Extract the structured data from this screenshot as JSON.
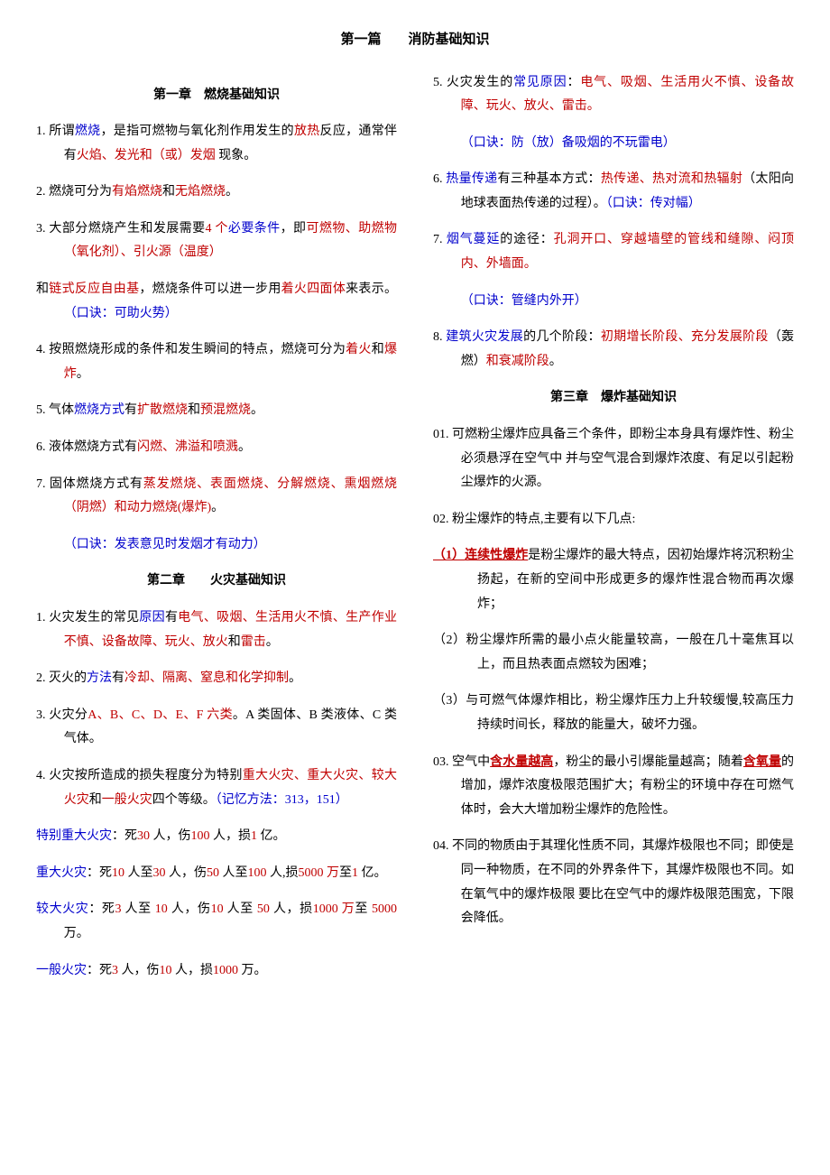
{
  "colors": {
    "black": "#000000",
    "red": "#c00000",
    "blue": "#0000cc",
    "background": "#ffffff"
  },
  "mainTitle": {
    "part1": "第一篇",
    "spacer": "　　",
    "part2": "消防基础知识"
  },
  "leftCol": {
    "ch1": {
      "title": "第一章　燃烧基础知识",
      "i1": {
        "a": "1. 所谓",
        "b": "燃烧",
        "c": "，是指可燃物与氧化剂作用发生的",
        "d": "放热",
        "e": "反应，通常伴有",
        "f": "火焰、发光和（或）发烟",
        "g": " 现象。"
      },
      "i2": {
        "a": "2. 燃烧可分为",
        "b": "有焰燃烧",
        "c": "和",
        "d": "无焰燃烧",
        "e": "。"
      },
      "i3": {
        "a": "3. 大部分燃烧产生和发展需要",
        "b": "4 个",
        "c": "必要条件",
        "d": "，即",
        "e": "可燃物、助燃物（氧化剂）、引火源（温度）"
      },
      "i3b": {
        "a": "和",
        "b": "链式反应自由基",
        "c": "，燃烧条件可以进一步用",
        "d": "着火四面体",
        "e": "来表示。",
        "f": "（口诀：可助火势）"
      },
      "i4": {
        "a": "4. 按照燃烧形成的条件和发生瞬间的特点，燃烧可分为",
        "b": "着火",
        "c": "和",
        "d": "爆炸",
        "e": "。"
      },
      "i5": {
        "a": "5. 气体",
        "b": "燃烧方式",
        "c": "有",
        "d": "扩散燃烧",
        "e": "和",
        "f": "预混燃烧",
        "g": "。"
      },
      "i6": {
        "a": "6. 液体燃烧方式有",
        "b": "闪燃、沸溢和喷溅",
        "c": "。"
      },
      "i7": {
        "a": "7. 固体燃烧方式有",
        "b": "蒸发燃烧、表面燃烧、分解燃烧、熏烟燃烧（阴燃）和动力燃烧(爆炸)",
        "c": "。"
      },
      "i7b": "（口诀：发表意见时发烟才有动力）"
    },
    "ch2": {
      "title": "第二章　　火灾基础知识",
      "i1": {
        "a": "1. 火灾发生的常见",
        "b": "原因",
        "c": "有",
        "d": "电气、吸烟、生活用火不慎、生产作业不慎、设备故障、玩火、放火",
        "e": "和",
        "f": "雷击",
        "g": "。"
      },
      "i2": {
        "a": "2. 灭火的",
        "b": "方法",
        "c": "有",
        "d": "冷却、隔离、窒息和化学抑制",
        "e": "。"
      },
      "i3": {
        "a": "3. 火灾分",
        "b": "A、B、C、D、E、F 六类",
        "c": "。A 类固体、B 类液体、C 类气体。"
      },
      "i4": {
        "a": "4. 火灾按所造成的损失程度分为特别",
        "b": "重大火灾、重大火灾、较大火灾",
        "c": "和",
        "d": "一般火灾",
        "e": "四个等级。",
        "f": "（记忆方法：313，151）"
      },
      "i5": {
        "a": "特别重大火灾",
        "b": "：死",
        "c": "30",
        "d": " 人，伤",
        "e": "100",
        "f": " 人，损",
        "g": "1",
        "h": " 亿。"
      },
      "i6": {
        "a": "重大火灾",
        "b": "：死",
        "c": "10",
        "d": " 人至",
        "e": "30",
        "f": " 人，伤",
        "g": "50",
        "h": " 人至",
        "i": "100",
        "j": " 人,损",
        "k": "5000 万",
        "l": "至",
        "m": "1",
        "n": " 亿。"
      },
      "i7": {
        "a": "较大火灾",
        "b": "：死",
        "c": "3",
        "d": " 人至",
        "e": " 10",
        "f": " 人，伤",
        "g": "10",
        "h": " 人至",
        "i": " 50",
        "j": " 人，损",
        "k": "1000 万",
        "l": "至",
        "m": " 5000 ",
        "n": "万。"
      },
      "i8": {
        "a": "一般火灾",
        "b": "：死",
        "c": "3",
        "d": " 人，伤",
        "e": "10",
        "f": " 人，损",
        "g": "1000 ",
        "h": "万。"
      }
    }
  },
  "rightCol": {
    "ch2b": {
      "i5": {
        "a": "5. 火灾发生的",
        "b": "常见原因",
        "c": "：",
        "d": "电气、吸烟、生活用火不慎、设备故障、玩火、放火、雷击。"
      },
      "i5b": "（口诀：防（放）备吸烟的不玩雷电）",
      "i6": {
        "a": "6. ",
        "b": "热量传递",
        "c": "有三种基本方式：",
        "d": "热传递、热对流和热辐射",
        "e": "（太阳向地球表面热传递的过程）。",
        "f": "（口诀：传对幅）"
      },
      "i7": {
        "a": "7. ",
        "b": "烟气蔓延",
        "c": "的途径：",
        "d": "孔洞开口、穿越墙壁的管线和缝隙、闷顶内、外墙面。"
      },
      "i7b": "（口诀：管缝内外开）",
      "i8": {
        "a": "8. ",
        "b": "建筑火灾发展",
        "c": "的几个阶段：",
        "d": "初期增长阶段、充分发展阶段",
        "e": "（轰燃）",
        "f": "和衰减阶段",
        "g": "。"
      }
    },
    "ch3": {
      "title": "第三章　爆炸基础知识",
      "i1": "01. 可燃粉尘爆炸应具备三个条件，即粉尘本身具有爆炸性、粉尘必须悬浮在空气中 并与空气混合到爆炸浓度、有足以引起粉尘爆炸的火源。",
      "i2": "02. 粉尘爆炸的特点,主要有以下几点:",
      "i2a": {
        "a": "（1）",
        "b": "连续性爆炸",
        "c": "是粉尘爆炸的最大特点，因初始爆炸将沉积粉尘扬起，在新的空间中形成更多的爆炸性混合物而再次爆炸；"
      },
      "i2b": "（2）粉尘爆炸所需的最小点火能量较高，一般在几十毫焦耳以上，而且热表面点燃较为困难；",
      "i2c": "（3）与可燃气体爆炸相比，粉尘爆炸压力上升较缓慢,较高压力持续时间长，释放的能量大，破坏力强。",
      "i3": {
        "a": "03. 空气中",
        "b": "含水量越高",
        "c": "，粉尘的最小引爆能量越高；随着",
        "d": "含氧量",
        "e": "的增加，爆炸浓度极限范围扩大；有粉尘的环境中存在可燃气体时，会大大增加粉尘爆炸的危险性。"
      },
      "i4": "04. 不同的物质由于其理化性质不同，其爆炸极限也不同；即使是同一种物质，在不同的外界条件下，其爆炸极限也不同。如在氧气中的爆炸极限 要比在空气中的爆炸极限范围宽，下限会降低。"
    }
  }
}
